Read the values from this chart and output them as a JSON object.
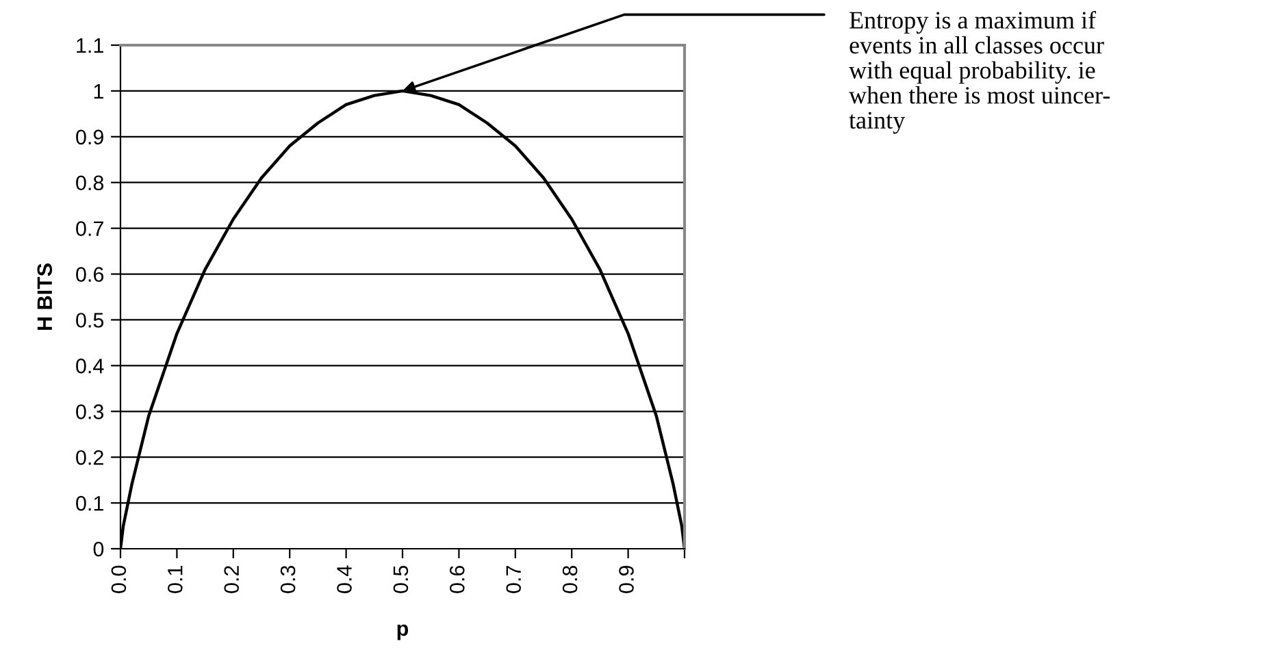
{
  "chart_data": {
    "type": "line",
    "xlabel": "p",
    "ylabel": "H BITS",
    "x": [
      0,
      0.005,
      0.01,
      0.02,
      0.05,
      0.1,
      0.15,
      0.2,
      0.25,
      0.3,
      0.35,
      0.4,
      0.45,
      0.5,
      0.55,
      0.6,
      0.65,
      0.7,
      0.75,
      0.8,
      0.85,
      0.9,
      0.95,
      0.98,
      0.99,
      0.995,
      1
    ],
    "series": [
      {
        "color": "#000000",
        "values": [
          0,
          0.05,
          0.08,
          0.14,
          0.29,
          0.47,
          0.61,
          0.72,
          0.81,
          0.88,
          0.93,
          0.97,
          0.99,
          1.0,
          0.99,
          0.97,
          0.93,
          0.88,
          0.81,
          0.72,
          0.61,
          0.47,
          0.29,
          0.14,
          0.08,
          0.05,
          0
        ]
      }
    ],
    "xlim": [
      0,
      1
    ],
    "ylim": [
      0,
      1.1
    ],
    "xticks": [
      {
        "value": 0,
        "label": "0.0"
      },
      0.1,
      0.2,
      0.3,
      0.4,
      0.5,
      0.6,
      0.7,
      0.8,
      0.9,
      {
        "value": 1,
        "label": null
      }
    ],
    "yticks": [
      0,
      0.1,
      0.2,
      0.3,
      0.4,
      0.5,
      0.6,
      0.7,
      0.8,
      0.9,
      1,
      1.1
    ],
    "grid": "y",
    "legend": false,
    "marker": "none",
    "line_style": "solid",
    "annotations": [
      {
        "text": "Entropy is a maximum if\nevents in all classes occur\nwith equal probability. ie\nwhen there is most uincer-\ntainty",
        "x": 0.5,
        "y": 1.0
      }
    ]
  }
}
